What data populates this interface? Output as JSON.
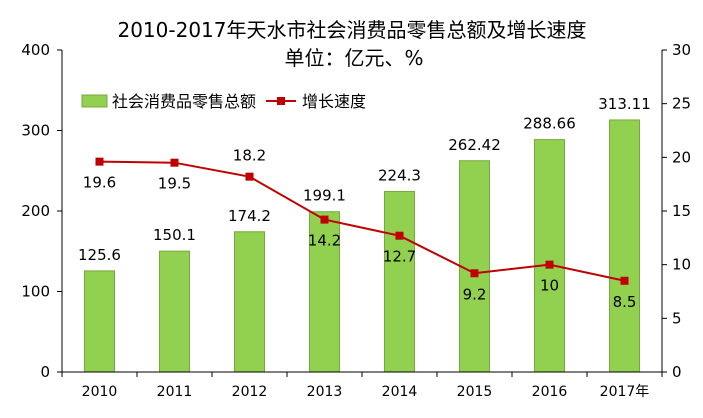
{
  "chart_data": {
    "type": "bar",
    "title": "2010-2017年天水市社会消费品零售总额及增长速度",
    "subtitle": "单位：亿元、%",
    "categories": [
      "2010",
      "2011",
      "2012",
      "2013",
      "2014",
      "2015",
      "2016",
      "2017年"
    ],
    "series": [
      {
        "name": "社会消费品零售总额",
        "type": "bar",
        "axis": "left",
        "color": "#92D050",
        "values": [
          125.6,
          150.1,
          174.2,
          199.1,
          224.3,
          262.42,
          288.66,
          313.11
        ]
      },
      {
        "name": "增长速度",
        "type": "line",
        "axis": "right",
        "color": "#C00000",
        "values": [
          19.6,
          19.5,
          18.2,
          14.2,
          12.7,
          9.2,
          10,
          8.5
        ]
      }
    ],
    "ylim": [
      0,
      400
    ],
    "yticks": [
      0,
      100,
      200,
      300,
      400
    ],
    "y2lim": [
      0,
      30
    ],
    "y2ticks": [
      0,
      5,
      10,
      15,
      20,
      25,
      30
    ],
    "grid": false,
    "legend_position": "top-left"
  }
}
